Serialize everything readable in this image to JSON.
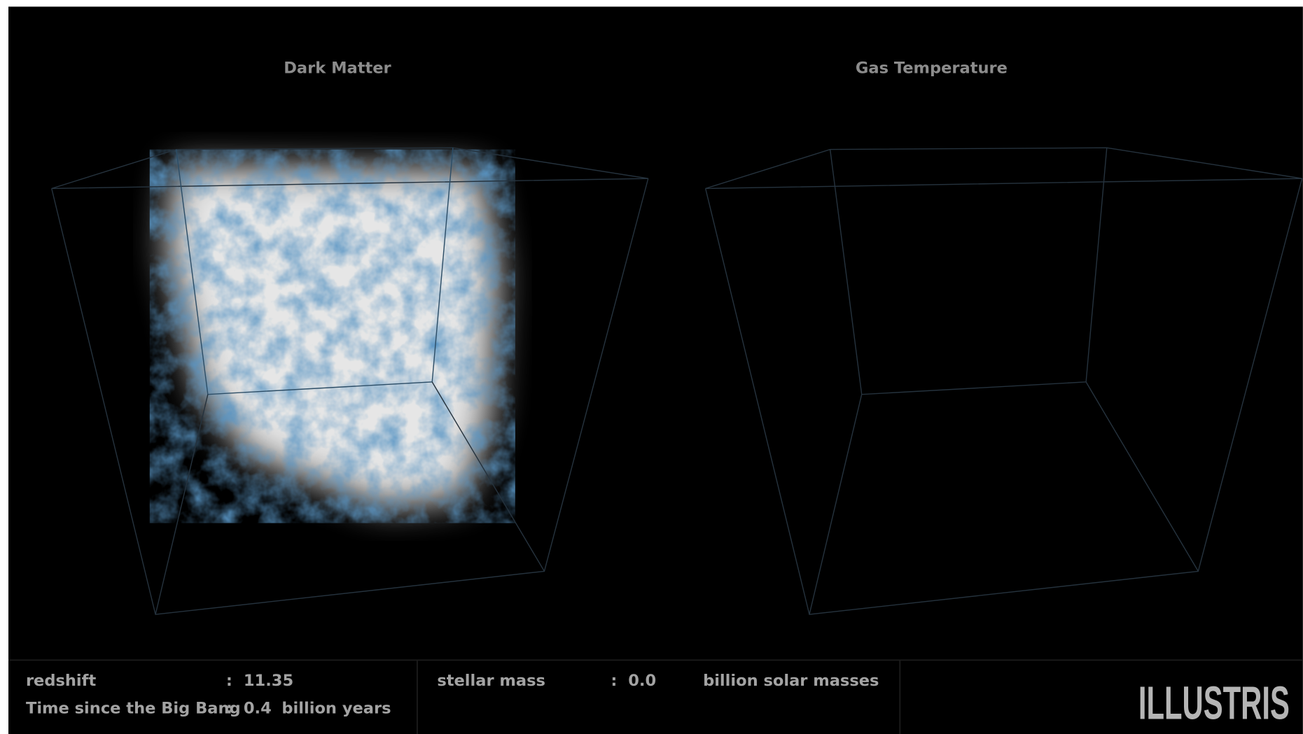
{
  "panels": [
    {
      "title": "Dark Matter"
    },
    {
      "title": "Gas Temperature"
    }
  ],
  "info": {
    "rows": [
      {
        "label": "redshift",
        "separator": ":",
        "value": "11.35"
      },
      {
        "label": "Time since the Big Bang",
        "separator": ":",
        "value": "0.4",
        "unit": "billion years"
      },
      {
        "label": "stellar mass",
        "separator": ":",
        "value": "0.0",
        "unit": "billion solar masses"
      }
    ],
    "logo": "ILLUSTRIS"
  }
}
